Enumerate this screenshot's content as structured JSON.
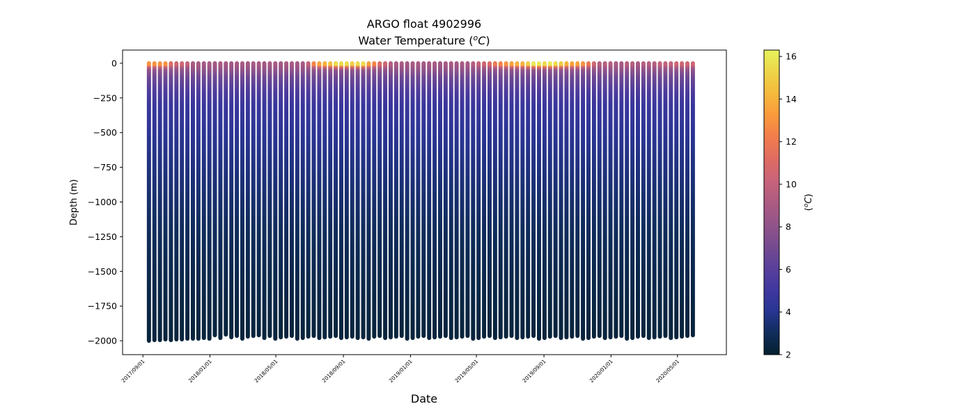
{
  "chart_data": {
    "type": "scatter",
    "title": "ARGO float 4902996",
    "subtitle": "Water Temperature (",
    "subtitle_unit_sup": "o",
    "subtitle_unit": "C",
    "subtitle_close": ")",
    "xlabel": "Date",
    "ylabel": "Depth (m)",
    "colorbar_label": "(",
    "colorbar_label_sup": "o",
    "colorbar_label_unit": "C",
    "colorbar_label_close": ")",
    "xlim": [
      "2017-07-26",
      "2020-07-29"
    ],
    "ylim": [
      -2100,
      95
    ],
    "x_ticks": [
      "2017/09/01",
      "2018/01/01",
      "2018/05/01",
      "2018/09/01",
      "2019/01/01",
      "2019/05/01",
      "2019/09/01",
      "2020/01/01",
      "2020/05/01"
    ],
    "y_ticks": [
      0,
      -250,
      -500,
      -750,
      -1000,
      -1250,
      -1500,
      -1750,
      -2000
    ],
    "y_tick_labels": [
      "0",
      "−250",
      "−500",
      "−750",
      "−1000",
      "−1250",
      "−1500",
      "−1750",
      "−2000"
    ],
    "colorbar_range": [
      2,
      16.3
    ],
    "colorbar_ticks": [
      "2",
      "4",
      "6",
      "8",
      "10",
      "12",
      "14",
      "16"
    ],
    "colormap": [
      "#04202f",
      "#102c5c",
      "#283592",
      "#40379f",
      "#5a409a",
      "#764b8f",
      "#935489",
      "#ad5b82",
      "#c8637a",
      "#df6c62",
      "#f17d4c",
      "#fa9a3c",
      "#f5b93c",
      "#edd548",
      "#e7f25c"
    ],
    "grid": false,
    "profile_dates": [
      "2017-09-12",
      "2017-09-22",
      "2017-10-02",
      "2017-10-12",
      "2017-10-22",
      "2017-11-01",
      "2017-11-11",
      "2017-11-21",
      "2017-12-01",
      "2017-12-11",
      "2017-12-21",
      "2017-12-31",
      "2018-01-10",
      "2018-01-20",
      "2018-01-30",
      "2018-02-09",
      "2018-02-19",
      "2018-03-01",
      "2018-03-11",
      "2018-03-21",
      "2018-03-31",
      "2018-04-10",
      "2018-04-20",
      "2018-04-30",
      "2018-05-10",
      "2018-05-20",
      "2018-05-30",
      "2018-06-09",
      "2018-06-19",
      "2018-06-29",
      "2018-07-09",
      "2018-07-19",
      "2018-07-29",
      "2018-08-08",
      "2018-08-18",
      "2018-08-28",
      "2018-09-07",
      "2018-09-17",
      "2018-09-27",
      "2018-10-07",
      "2018-10-17",
      "2018-10-27",
      "2018-11-06",
      "2018-11-16",
      "2018-11-26",
      "2018-12-06",
      "2018-12-16",
      "2018-12-26",
      "2019-01-05",
      "2019-01-15",
      "2019-01-25",
      "2019-02-04",
      "2019-02-14",
      "2019-02-24",
      "2019-03-06",
      "2019-03-16",
      "2019-03-26",
      "2019-04-05",
      "2019-04-15",
      "2019-04-25",
      "2019-05-05",
      "2019-05-15",
      "2019-05-25",
      "2019-06-04",
      "2019-06-14",
      "2019-06-24",
      "2019-07-04",
      "2019-07-14",
      "2019-07-24",
      "2019-08-03",
      "2019-08-13",
      "2019-08-23",
      "2019-09-02",
      "2019-09-12",
      "2019-09-22",
      "2019-10-02",
      "2019-10-12",
      "2019-10-22",
      "2019-11-01",
      "2019-11-11",
      "2019-11-21",
      "2019-12-01",
      "2019-12-11",
      "2019-12-21",
      "2019-12-31",
      "2020-01-10",
      "2020-01-20",
      "2020-01-30",
      "2020-02-09",
      "2020-02-19",
      "2020-02-29",
      "2020-03-10",
      "2020-03-20",
      "2020-03-30",
      "2020-04-09",
      "2020-04-19",
      "2020-04-29",
      "2020-05-09",
      "2020-05-19",
      "2020-05-29"
    ],
    "surface_temperature": [
      13,
      13,
      13,
      13,
      11,
      10.5,
      10.5,
      10,
      9,
      9,
      8.8,
      9,
      8.8,
      9,
      8.8,
      8.8,
      9,
      9,
      8.8,
      9,
      9,
      8.8,
      9,
      9,
      8.8,
      9,
      9,
      8.8,
      9,
      10,
      12.5,
      13.5,
      14,
      14.5,
      15.5,
      15.5,
      15.5,
      15,
      15.5,
      15.5,
      13.5,
      12.5,
      11,
      10.5,
      9.5,
      9,
      9,
      8.8,
      9,
      9,
      8.8,
      9,
      9,
      8.8,
      9,
      9,
      8.8,
      9,
      9,
      9.5,
      10,
      10.5,
      11,
      12,
      12.5,
      13,
      13.5,
      14,
      14,
      15,
      16,
      16,
      15.5,
      16,
      15.5,
      15,
      14,
      13.5,
      13.5,
      13,
      12,
      10.5,
      9.5,
      9.5,
      9.5,
      9,
      9,
      9.5,
      9.5,
      9,
      9.5,
      9.5,
      9.5,
      10,
      10,
      10,
      10.5,
      10.5,
      10.5,
      10.5
    ],
    "max_depth": [
      -2000,
      -1995,
      -1995,
      -1990,
      -1995,
      -1990,
      -1990,
      -1985,
      -1985,
      -1985,
      -1980,
      -1985,
      -1960,
      -1980,
      -1955,
      -1975,
      -1965,
      -1985,
      -1970,
      -1965,
      -1960,
      -1980,
      -1965,
      -1985,
      -1975,
      -1970,
      -1965,
      -1985,
      -1980,
      -1970,
      -1965,
      -1980,
      -1975,
      -1970,
      -1965,
      -1980,
      -1975,
      -1970,
      -1980,
      -1975,
      -1985,
      -1970,
      -1965,
      -1980,
      -1975,
      -1970,
      -1965,
      -1985,
      -1980,
      -1970,
      -1965,
      -1980,
      -1975,
      -1970,
      -1965,
      -1980,
      -1975,
      -1970,
      -1965,
      -1985,
      -1980,
      -1970,
      -1965,
      -1980,
      -1975,
      -1970,
      -1965,
      -1980,
      -1975,
      -1970,
      -1965,
      -1985,
      -1980,
      -1970,
      -1965,
      -1980,
      -1975,
      -1970,
      -1965,
      -1985,
      -1980,
      -1970,
      -1965,
      -1980,
      -1975,
      -1970,
      -1965,
      -1985,
      -1980,
      -1970,
      -1965,
      -1980,
      -1975,
      -1970,
      -1965,
      -1980,
      -1975,
      -1970,
      -1965,
      -1960
    ],
    "subsurface_profile": {
      "depth": [
        -50,
        -100,
        -200,
        -300,
        -500,
        -800,
        -1200,
        -1600,
        -2000
      ],
      "temperature": [
        8,
        6.8,
        5.6,
        4.8,
        4.2,
        3.6,
        3.0,
        2.6,
        2.3
      ]
    }
  }
}
